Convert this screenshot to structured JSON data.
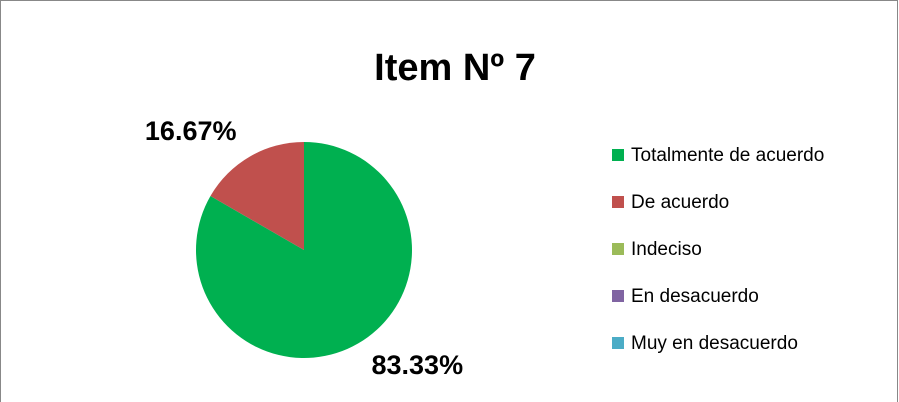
{
  "chart_data": {
    "type": "pie",
    "title": "Item Nº 7",
    "categories": [
      "Totalmente de acuerdo",
      "De acuerdo",
      "Indeciso",
      "En desacuerdo",
      "Muy en desacuerdo"
    ],
    "values": [
      83.33,
      16.67,
      0,
      0,
      0
    ],
    "value_labels": [
      "83.33%",
      "16.67%",
      null,
      null,
      null
    ],
    "colors": [
      "#00b050",
      "#c0504d",
      "#9bbb59",
      "#8064a2",
      "#4bacc6"
    ],
    "legend": "right"
  }
}
